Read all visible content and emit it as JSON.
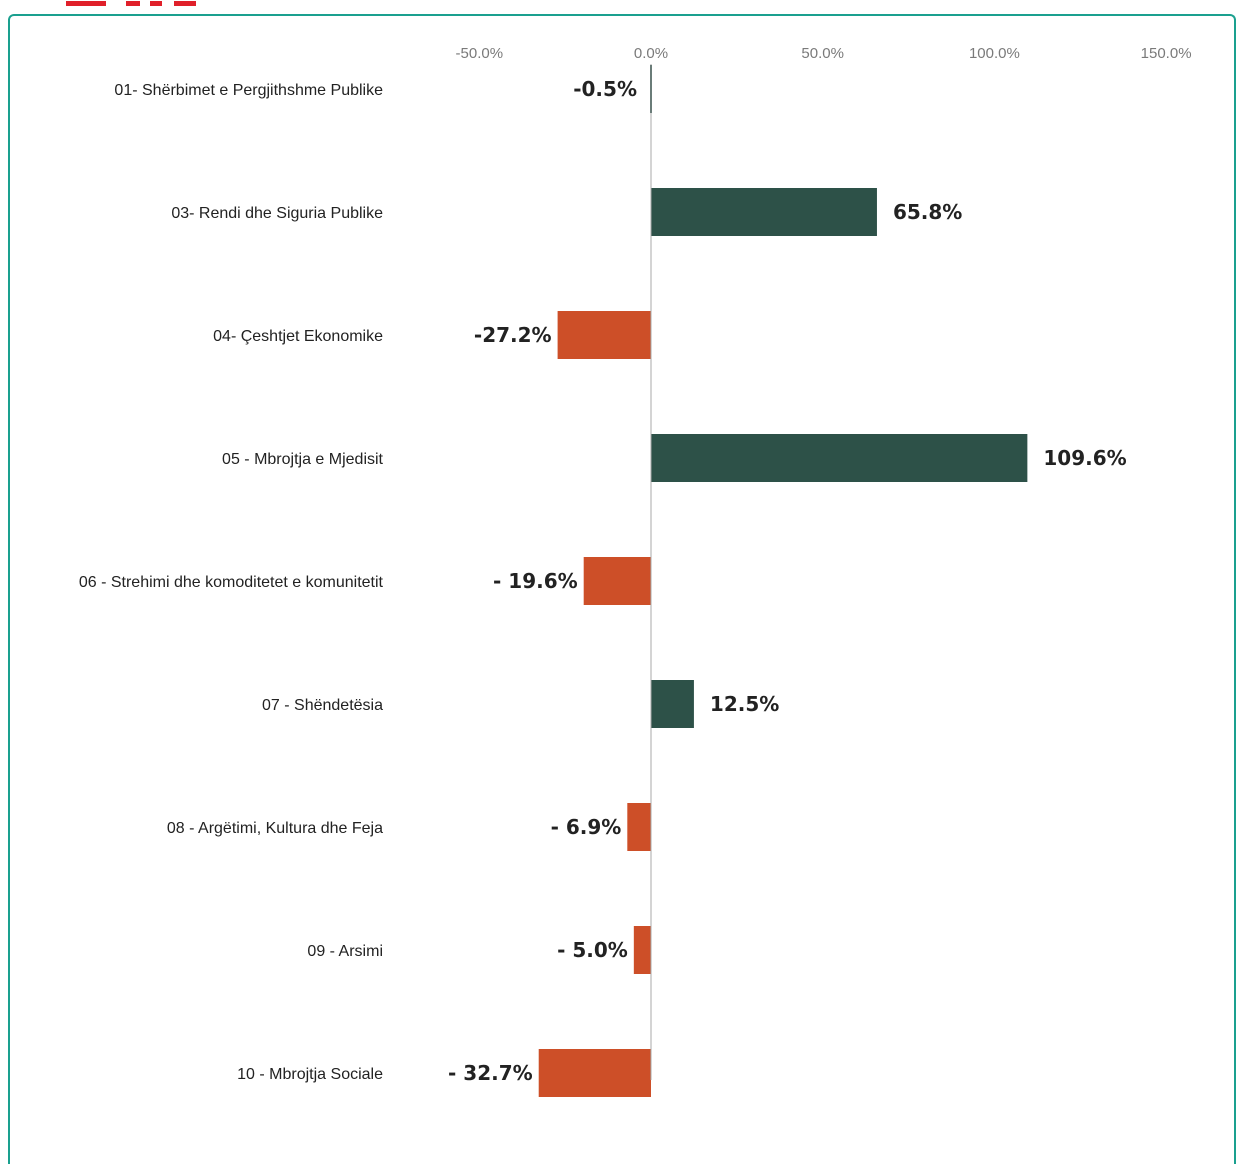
{
  "colors": {
    "frame": "#1aa08f",
    "positive": "#2d5148",
    "negative": "#cd4f28",
    "header_text": "#e0202a"
  },
  "chart_data": {
    "type": "bar",
    "orientation": "horizontal",
    "categories": [
      "01- Shërbimet e Pergjithshme Publike",
      "03- Rendi dhe Siguria Publike",
      "04- Çeshtjet Ekonomike",
      "05 - Mbrojtja e Mjedisit",
      "06 - Strehimi dhe komoditetet e komunitetit",
      "07 - Shëndetësia",
      "08 - Argëtimi, Kultura dhe Feja",
      "09 - Arsimi",
      "10 - Mbrojtja Sociale"
    ],
    "values": [
      -0.5,
      65.8,
      -27.2,
      109.6,
      -19.6,
      12.5,
      -6.9,
      -5.0,
      -32.7
    ],
    "data_labels": [
      "-0.5%",
      "65.8%",
      "-27.2%",
      "109.6%",
      "- 19.6%",
      "12.5%",
      "- 6.9%",
      "- 5.0%",
      "- 32.7%"
    ],
    "x_ticks": [
      -50,
      0,
      50,
      100,
      150
    ],
    "x_tick_labels": [
      "-50.0%",
      "0.0%",
      "50.0%",
      "100.0%",
      "150.0%"
    ],
    "xlim": [
      -50,
      150
    ],
    "axis_position": "top",
    "grid": false,
    "legend": "none",
    "title": "",
    "xlabel": "",
    "ylabel": ""
  }
}
